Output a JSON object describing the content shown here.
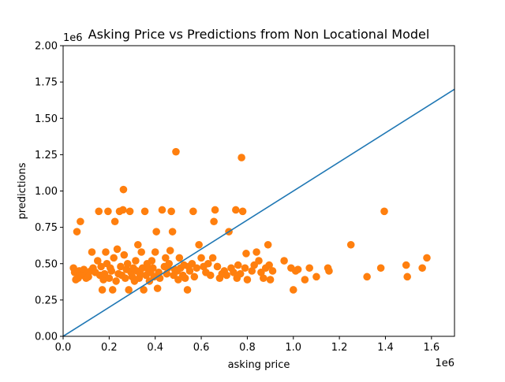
{
  "chart_data": {
    "type": "scatter",
    "title": "Asking Price vs Predictions from Non Locational Model",
    "xlabel": "asking price",
    "ylabel": "predictions",
    "x_offset_label": "1e6",
    "y_offset_label": "1e6",
    "xlim": [
      0,
      1700000
    ],
    "ylim": [
      0,
      2000000
    ],
    "x_ticks": [
      0,
      200000,
      400000,
      600000,
      800000,
      1000000,
      1200000,
      1400000,
      1600000
    ],
    "x_tick_labels": [
      "0.0",
      "0.2",
      "0.4",
      "0.6",
      "0.8",
      "1.0",
      "1.2",
      "1.4",
      "1.6"
    ],
    "y_ticks": [
      0,
      250000,
      500000,
      750000,
      1000000,
      1250000,
      1500000,
      1750000,
      2000000
    ],
    "y_tick_labels": [
      "0.00",
      "0.25",
      "0.50",
      "0.75",
      "1.00",
      "1.25",
      "1.50",
      "1.75",
      "2.00"
    ],
    "grid": false,
    "legend": "none",
    "reference_line": {
      "color": "#1f77b4",
      "points": [
        [
          0,
          0
        ],
        [
          1700000,
          1700000
        ]
      ]
    },
    "series": [
      {
        "color": "#ff7f0e",
        "points": [
          [
            45000,
            470000
          ],
          [
            50000,
            440000
          ],
          [
            55000,
            390000
          ],
          [
            60000,
            720000
          ],
          [
            65000,
            400000
          ],
          [
            70000,
            450000
          ],
          [
            75000,
            790000
          ],
          [
            80000,
            420000
          ],
          [
            90000,
            460000
          ],
          [
            100000,
            400000
          ],
          [
            105000,
            430000
          ],
          [
            110000,
            410000
          ],
          [
            120000,
            450000
          ],
          [
            125000,
            580000
          ],
          [
            130000,
            470000
          ],
          [
            140000,
            440000
          ],
          [
            150000,
            520000
          ],
          [
            155000,
            860000
          ],
          [
            160000,
            420000
          ],
          [
            165000,
            480000
          ],
          [
            170000,
            320000
          ],
          [
            175000,
            390000
          ],
          [
            180000,
            430000
          ],
          [
            185000,
            580000
          ],
          [
            190000,
            500000
          ],
          [
            195000,
            860000
          ],
          [
            200000,
            400000
          ],
          [
            205000,
            470000
          ],
          [
            210000,
            450000
          ],
          [
            215000,
            320000
          ],
          [
            220000,
            540000
          ],
          [
            225000,
            790000
          ],
          [
            230000,
            380000
          ],
          [
            235000,
            600000
          ],
          [
            240000,
            430000
          ],
          [
            245000,
            860000
          ],
          [
            250000,
            480000
          ],
          [
            255000,
            420000
          ],
          [
            260000,
            870000
          ],
          [
            262000,
            1010000
          ],
          [
            265000,
            560000
          ],
          [
            270000,
            400000
          ],
          [
            275000,
            460000
          ],
          [
            280000,
            500000
          ],
          [
            285000,
            320000
          ],
          [
            290000,
            860000
          ],
          [
            295000,
            440000
          ],
          [
            300000,
            410000
          ],
          [
            305000,
            470000
          ],
          [
            310000,
            380000
          ],
          [
            315000,
            520000
          ],
          [
            320000,
            450000
          ],
          [
            325000,
            630000
          ],
          [
            330000,
            400000
          ],
          [
            335000,
            430000
          ],
          [
            340000,
            580000
          ],
          [
            345000,
            470000
          ],
          [
            350000,
            320000
          ],
          [
            355000,
            860000
          ],
          [
            360000,
            420000
          ],
          [
            365000,
            500000
          ],
          [
            370000,
            460000
          ],
          [
            375000,
            380000
          ],
          [
            380000,
            440000
          ],
          [
            385000,
            520000
          ],
          [
            390000,
            470000
          ],
          [
            395000,
            410000
          ],
          [
            400000,
            580000
          ],
          [
            405000,
            720000
          ],
          [
            410000,
            330000
          ],
          [
            415000,
            440000
          ],
          [
            420000,
            400000
          ],
          [
            430000,
            870000
          ],
          [
            440000,
            480000
          ],
          [
            445000,
            540000
          ],
          [
            450000,
            430000
          ],
          [
            455000,
            470000
          ],
          [
            460000,
            500000
          ],
          [
            465000,
            590000
          ],
          [
            470000,
            860000
          ],
          [
            475000,
            720000
          ],
          [
            480000,
            420000
          ],
          [
            485000,
            460000
          ],
          [
            490000,
            1270000
          ],
          [
            495000,
            450000
          ],
          [
            500000,
            390000
          ],
          [
            505000,
            540000
          ],
          [
            510000,
            470000
          ],
          [
            520000,
            420000
          ],
          [
            525000,
            490000
          ],
          [
            530000,
            400000
          ],
          [
            540000,
            320000
          ],
          [
            545000,
            480000
          ],
          [
            550000,
            450000
          ],
          [
            560000,
            500000
          ],
          [
            565000,
            860000
          ],
          [
            570000,
            410000
          ],
          [
            580000,
            470000
          ],
          [
            590000,
            630000
          ],
          [
            600000,
            540000
          ],
          [
            610000,
            480000
          ],
          [
            620000,
            440000
          ],
          [
            630000,
            500000
          ],
          [
            640000,
            420000
          ],
          [
            650000,
            540000
          ],
          [
            655000,
            790000
          ],
          [
            660000,
            870000
          ],
          [
            670000,
            480000
          ],
          [
            680000,
            400000
          ],
          [
            690000,
            430000
          ],
          [
            700000,
            450000
          ],
          [
            710000,
            420000
          ],
          [
            720000,
            720000
          ],
          [
            730000,
            470000
          ],
          [
            740000,
            440000
          ],
          [
            750000,
            870000
          ],
          [
            755000,
            400000
          ],
          [
            760000,
            490000
          ],
          [
            770000,
            430000
          ],
          [
            775000,
            1230000
          ],
          [
            780000,
            860000
          ],
          [
            790000,
            470000
          ],
          [
            795000,
            570000
          ],
          [
            800000,
            390000
          ],
          [
            820000,
            450000
          ],
          [
            830000,
            490000
          ],
          [
            840000,
            580000
          ],
          [
            850000,
            520000
          ],
          [
            860000,
            440000
          ],
          [
            870000,
            400000
          ],
          [
            880000,
            470000
          ],
          [
            890000,
            630000
          ],
          [
            895000,
            490000
          ],
          [
            900000,
            390000
          ],
          [
            910000,
            450000
          ],
          [
            960000,
            520000
          ],
          [
            990000,
            470000
          ],
          [
            1000000,
            320000
          ],
          [
            1010000,
            450000
          ],
          [
            1020000,
            460000
          ],
          [
            1050000,
            390000
          ],
          [
            1070000,
            470000
          ],
          [
            1100000,
            410000
          ],
          [
            1150000,
            470000
          ],
          [
            1155000,
            450000
          ],
          [
            1250000,
            630000
          ],
          [
            1320000,
            410000
          ],
          [
            1380000,
            470000
          ],
          [
            1395000,
            860000
          ],
          [
            1490000,
            490000
          ],
          [
            1495000,
            410000
          ],
          [
            1560000,
            470000
          ],
          [
            1580000,
            540000
          ]
        ]
      }
    ]
  }
}
